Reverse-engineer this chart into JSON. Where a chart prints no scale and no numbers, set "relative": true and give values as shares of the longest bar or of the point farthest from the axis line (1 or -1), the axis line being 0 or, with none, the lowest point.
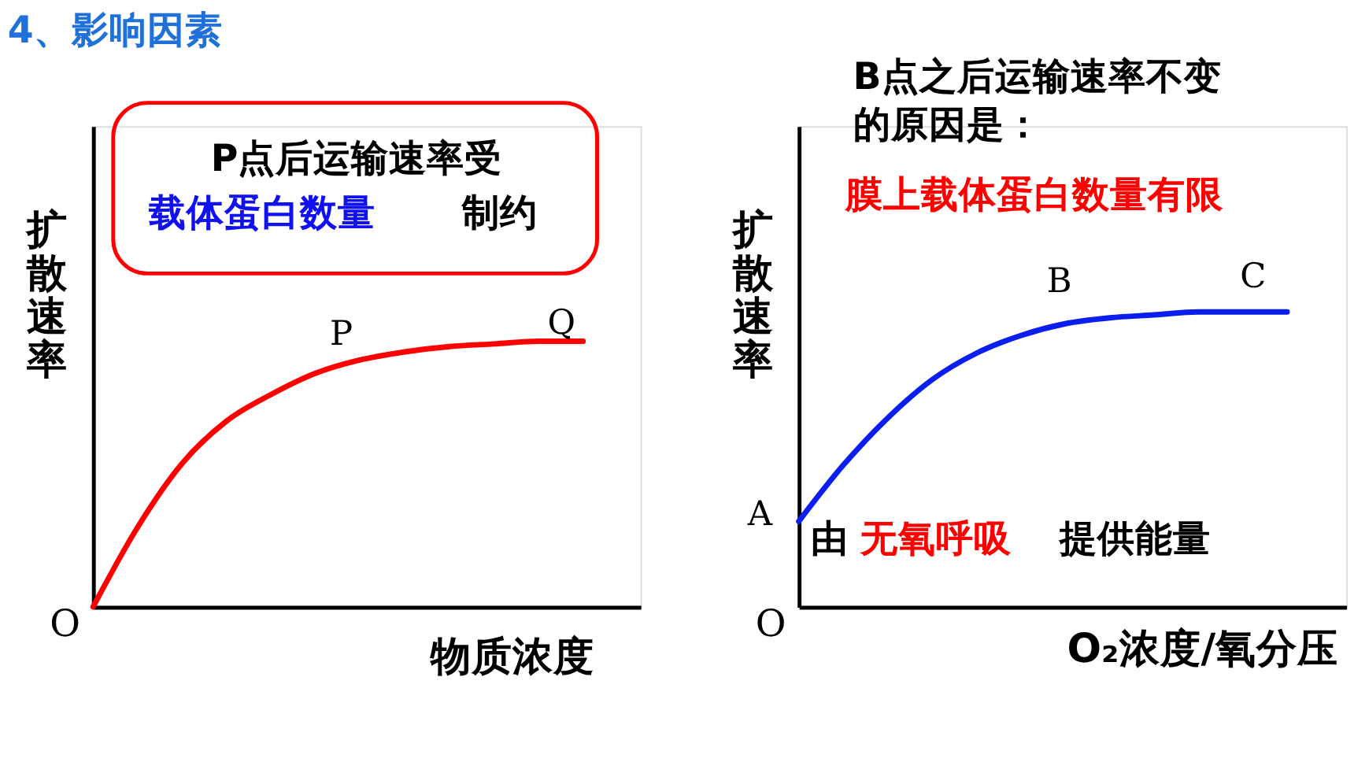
{
  "chart_data": [
    {
      "type": "line",
      "title": "4、影响因素",
      "ylabel": "扩散速率",
      "xlabel": "物质浓度",
      "relative": true,
      "tick_labels": false,
      "categories": [
        null,
        null,
        null,
        null,
        null,
        null,
        null,
        null,
        null,
        null,
        null,
        null
      ],
      "series": [
        {
          "color": "#ff0000",
          "values": [
            0,
            0.3,
            0.54,
            0.7,
            0.8,
            0.88,
            0.93,
            0.96,
            0.98,
            0.99,
            1,
            1
          ]
        }
      ],
      "annotations": [
        "O",
        "P",
        "Q",
        "P点后运输速率受",
        "载体蛋白数量",
        "制约"
      ]
    },
    {
      "type": "line",
      "ylabel": "扩散速率",
      "xlabel": "O₂浓度/氧分压",
      "relative": true,
      "tick_labels": false,
      "categories": [
        null,
        null,
        null,
        null,
        null,
        null,
        null,
        null,
        null,
        null,
        null,
        null
      ],
      "series": [
        {
          "color": "#0a1ef0",
          "values": [
            0.29,
            0.48,
            0.64,
            0.77,
            0.86,
            0.92,
            0.96,
            0.98,
            0.99,
            1,
            1,
            1
          ]
        }
      ],
      "annotations": [
        "B点之后运输速率不变",
        "的原因是：",
        "膜上载体蛋白数量有限",
        "A",
        "B",
        "C",
        "O",
        "由",
        "无氧呼吸",
        "提供能量"
      ]
    }
  ]
}
